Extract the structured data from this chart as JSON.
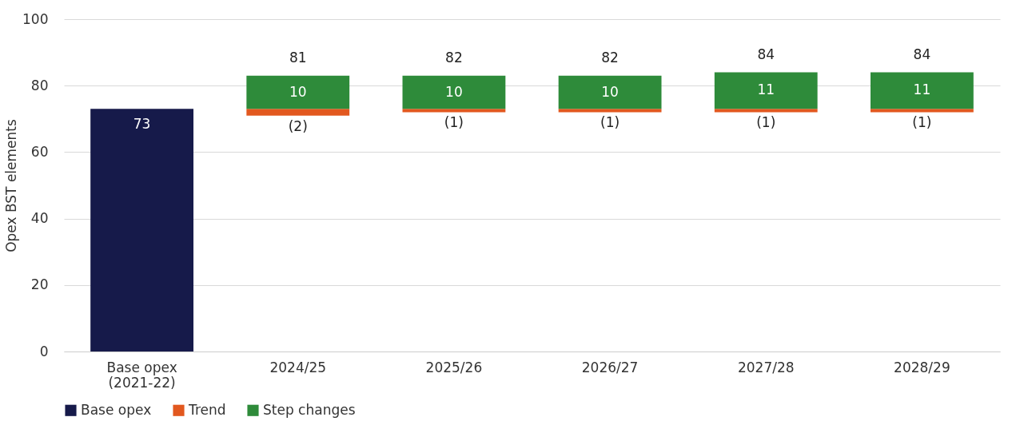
{
  "chart_data": {
    "type": "bar",
    "ylabel": "Opex BST elements",
    "categories": [
      "Base opex\n(2021-22)",
      "2024/25",
      "2025/26",
      "2026/27",
      "2027/28",
      "2028/29"
    ],
    "series": [
      {
        "name": "Base opex",
        "color": "#161a4a",
        "values": [
          73,
          null,
          null,
          null,
          null,
          null
        ],
        "value_labels": [
          "73",
          null,
          null,
          null,
          null,
          null
        ]
      },
      {
        "name": "Trend",
        "color": "#e2581f",
        "values": [
          null,
          -2,
          -1,
          -1,
          -1,
          -1
        ],
        "base": [
          null,
          73,
          73,
          73,
          73,
          73
        ],
        "value_labels": [
          null,
          "(2)",
          "(1)",
          "(1)",
          "(1)",
          "(1)"
        ]
      },
      {
        "name": "Step changes",
        "color": "#2e8b3a",
        "values": [
          null,
          10,
          10,
          10,
          11,
          11
        ],
        "base": [
          null,
          73,
          73,
          73,
          73,
          73
        ],
        "value_labels": [
          null,
          "10",
          "10",
          "10",
          "11",
          "11"
        ]
      }
    ],
    "annotations": [
      {
        "text": "81",
        "x": "2024/25",
        "y": 83
      },
      {
        "text": "82",
        "x": "2025/26",
        "y": 83
      },
      {
        "text": "82",
        "x": "2026/27",
        "y": 83
      },
      {
        "text": "84",
        "x": "2027/28",
        "y": 84
      },
      {
        "text": "84",
        "x": "2028/29",
        "y": 84
      }
    ],
    "ylim": [
      0,
      100
    ],
    "yticks": [
      0,
      20,
      40,
      60,
      80,
      100
    ],
    "grid": "y",
    "legend": "bottom"
  }
}
